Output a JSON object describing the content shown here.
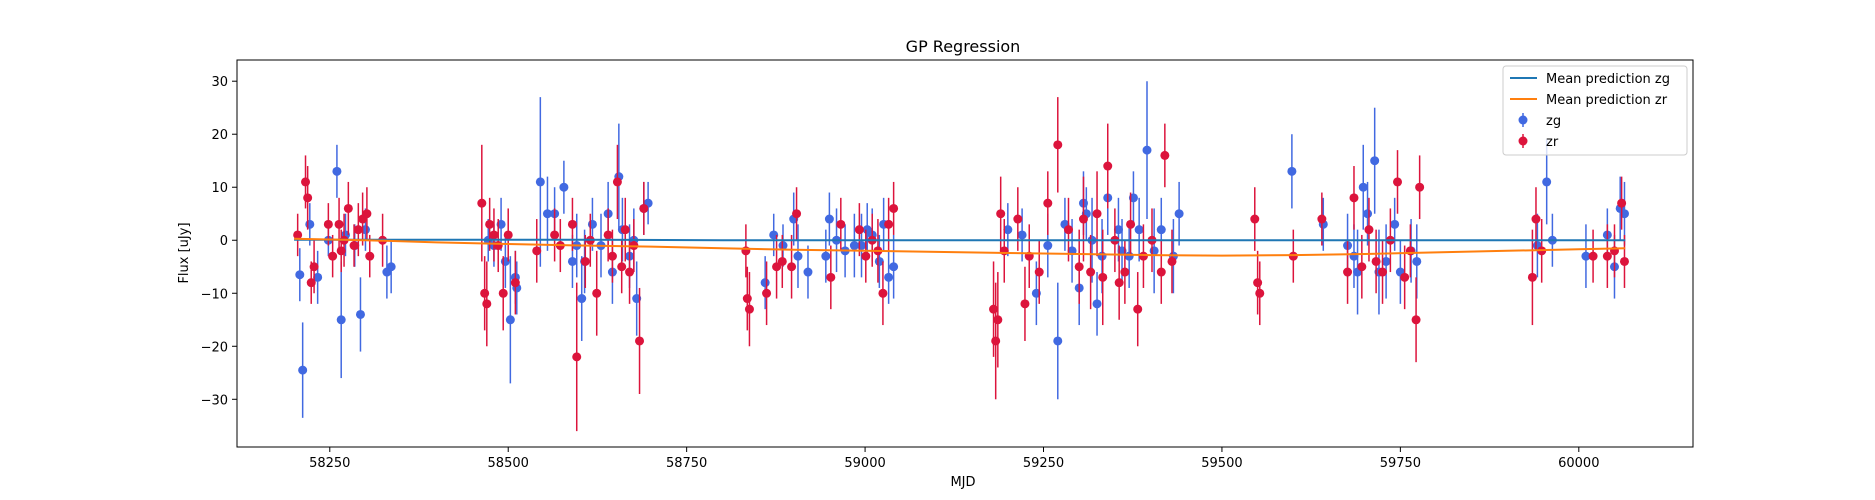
{
  "chart_data": {
    "type": "scatter",
    "title": "GP Regression",
    "xlabel": "MJD",
    "ylabel": "Flux [uJy]",
    "xlim": [
      58120,
      60160
    ],
    "ylim": [
      -39,
      34
    ],
    "xticks": [
      58250,
      58500,
      58750,
      59000,
      59250,
      59500,
      59750,
      60000
    ],
    "yticks": [
      -30,
      -20,
      -10,
      0,
      10,
      20,
      30
    ],
    "grid": false,
    "legend_position": "top-right",
    "colors": {
      "zg_line": "#1f77b4",
      "zr_line": "#ff7f0e",
      "zg": "#4169e1",
      "zr": "#dc143c"
    },
    "lines": [
      {
        "name": "Mean prediction zg",
        "color": "#1f77b4",
        "x": [
          58200,
          58400,
          58600,
          58800,
          59000,
          59200,
          59400,
          59600,
          59800,
          60000,
          60065
        ],
        "y": [
          0.1,
          0.1,
          0.1,
          0.0,
          0.0,
          0.0,
          0.0,
          0.0,
          0.0,
          0.0,
          0.0
        ]
      },
      {
        "name": "Mean prediction zr",
        "color": "#ff7f0e",
        "x": [
          58200,
          58300,
          58400,
          58500,
          58600,
          58700,
          58800,
          58900,
          59000,
          59100,
          59200,
          59300,
          59400,
          59500,
          59600,
          59700,
          59800,
          59900,
          60000,
          60065
        ],
        "y": [
          0.3,
          0.0,
          -0.4,
          -0.7,
          -1.0,
          -1.2,
          -1.5,
          -1.8,
          -2.0,
          -2.2,
          -2.4,
          -2.6,
          -2.8,
          -2.9,
          -2.8,
          -2.6,
          -2.3,
          -2.0,
          -1.7,
          -1.5
        ]
      }
    ],
    "series": [
      {
        "name": "zg",
        "color": "#4169e1",
        "points": [
          [
            58208,
            -6.5,
            5
          ],
          [
            58212,
            -24.5,
            9
          ],
          [
            58222,
            3,
            4
          ],
          [
            58233,
            -7,
            5
          ],
          [
            58248,
            0,
            3
          ],
          [
            58260,
            13,
            5
          ],
          [
            58266,
            -15,
            11
          ],
          [
            58272,
            1,
            4
          ],
          [
            58285,
            -1,
            4
          ],
          [
            58293,
            -14,
            7
          ],
          [
            58300,
            2,
            4
          ],
          [
            58330,
            -6,
            5
          ],
          [
            58336,
            -5,
            5
          ],
          [
            58472,
            0,
            4
          ],
          [
            58480,
            -1,
            4
          ],
          [
            58490,
            3,
            5
          ],
          [
            58496,
            -4,
            5
          ],
          [
            58503,
            -15,
            12
          ],
          [
            58510,
            -7,
            5
          ],
          [
            58512,
            -9,
            5
          ],
          [
            58545,
            11,
            16
          ],
          [
            58555,
            5,
            7
          ],
          [
            58565,
            5,
            5
          ],
          [
            58578,
            10,
            5
          ],
          [
            58590,
            -4,
            5
          ],
          [
            58596,
            -1,
            6
          ],
          [
            58603,
            -11,
            8
          ],
          [
            58607,
            -4,
            6
          ],
          [
            58618,
            3,
            5
          ],
          [
            58630,
            -1,
            6
          ],
          [
            58640,
            5,
            6
          ],
          [
            58646,
            -6,
            6
          ],
          [
            58655,
            12,
            10
          ],
          [
            58660,
            2,
            6
          ],
          [
            58670,
            -3,
            6
          ],
          [
            58676,
            0,
            6
          ],
          [
            58680,
            -11,
            7
          ],
          [
            58690,
            6,
            5
          ],
          [
            58696,
            7,
            4
          ],
          [
            58860,
            -8,
            5
          ],
          [
            58872,
            1,
            4
          ],
          [
            58885,
            -1,
            4
          ],
          [
            58900,
            4,
            5
          ],
          [
            58906,
            -3,
            6
          ],
          [
            58920,
            -6,
            5
          ],
          [
            58945,
            -3,
            5
          ],
          [
            58950,
            4,
            5
          ],
          [
            58960,
            0,
            6
          ],
          [
            58972,
            -2,
            5
          ],
          [
            58985,
            -1,
            6
          ],
          [
            58995,
            -1,
            6
          ],
          [
            59003,
            2,
            5
          ],
          [
            59010,
            1,
            5
          ],
          [
            59020,
            -4,
            5
          ],
          [
            59026,
            3,
            5
          ],
          [
            59033,
            -7,
            5
          ],
          [
            59040,
            -5,
            6
          ],
          [
            59200,
            2,
            5
          ],
          [
            59220,
            1,
            5
          ],
          [
            59240,
            -10,
            6
          ],
          [
            59256,
            -1,
            6
          ],
          [
            59270,
            -19,
            11
          ],
          [
            59280,
            3,
            5
          ],
          [
            59290,
            -2,
            6
          ],
          [
            59300,
            -9,
            7
          ],
          [
            59306,
            7,
            6
          ],
          [
            59310,
            5,
            5
          ],
          [
            59318,
            0,
            8
          ],
          [
            59325,
            -12,
            6
          ],
          [
            59332,
            -3,
            7
          ],
          [
            59340,
            8,
            7
          ],
          [
            59355,
            2,
            6
          ],
          [
            59360,
            -2,
            6
          ],
          [
            59370,
            -3,
            6
          ],
          [
            59376,
            8,
            5
          ],
          [
            59384,
            2,
            6
          ],
          [
            59395,
            17,
            13
          ],
          [
            59405,
            -2,
            8
          ],
          [
            59415,
            2,
            6
          ],
          [
            59432,
            -3,
            7
          ],
          [
            59440,
            5,
            6
          ],
          [
            59598,
            13,
            7
          ],
          [
            59642,
            3,
            5
          ],
          [
            59676,
            -1,
            6
          ],
          [
            59685,
            -3,
            6
          ],
          [
            59690,
            -6,
            8
          ],
          [
            59698,
            10,
            8
          ],
          [
            59704,
            5,
            6
          ],
          [
            59714,
            15,
            10
          ],
          [
            59720,
            -6,
            8
          ],
          [
            59730,
            -4,
            7
          ],
          [
            59742,
            3,
            5
          ],
          [
            59750,
            -6,
            6
          ],
          [
            59765,
            -2,
            6
          ],
          [
            59773,
            -4,
            7
          ],
          [
            59942,
            -1,
            6
          ],
          [
            59955,
            11,
            8
          ],
          [
            59963,
            0,
            5
          ],
          [
            60010,
            -3,
            6
          ],
          [
            60040,
            1,
            5
          ],
          [
            60050,
            -5,
            6
          ],
          [
            60058,
            6,
            6
          ],
          [
            60064,
            5,
            6
          ]
        ]
      },
      {
        "name": "zr",
        "color": "#dc143c",
        "points": [
          [
            58205,
            1,
            4
          ],
          [
            58216,
            11,
            5
          ],
          [
            58219,
            8,
            6
          ],
          [
            58224,
            -8,
            4
          ],
          [
            58228,
            -5,
            5
          ],
          [
            58248,
            3,
            4
          ],
          [
            58254,
            -3,
            4
          ],
          [
            58263,
            3,
            5
          ],
          [
            58266,
            -2,
            4
          ],
          [
            58270,
            0,
            5
          ],
          [
            58276,
            6,
            5
          ],
          [
            58284,
            -1,
            4
          ],
          [
            58290,
            2,
            5
          ],
          [
            58296,
            4,
            5
          ],
          [
            58302,
            5,
            5
          ],
          [
            58306,
            -3,
            4
          ],
          [
            58324,
            0,
            5
          ],
          [
            58463,
            7,
            11
          ],
          [
            58467,
            -10,
            7
          ],
          [
            58470,
            -12,
            8
          ],
          [
            58474,
            3,
            5
          ],
          [
            58480,
            1,
            5
          ],
          [
            58486,
            -1,
            5
          ],
          [
            58493,
            -10,
            7
          ],
          [
            58500,
            1,
            5
          ],
          [
            58510,
            -8,
            6
          ],
          [
            58540,
            -2,
            6
          ],
          [
            58565,
            1,
            5
          ],
          [
            58573,
            -1,
            5
          ],
          [
            58590,
            3,
            5
          ],
          [
            58596,
            -22,
            14
          ],
          [
            58608,
            -4,
            5
          ],
          [
            58615,
            0,
            5
          ],
          [
            58624,
            -10,
            8
          ],
          [
            58640,
            1,
            5
          ],
          [
            58646,
            -3,
            5
          ],
          [
            58653,
            11,
            7
          ],
          [
            58659,
            -5,
            5
          ],
          [
            58664,
            2,
            6
          ],
          [
            58670,
            -6,
            6
          ],
          [
            58676,
            -1,
            5
          ],
          [
            58684,
            -19,
            10
          ],
          [
            58690,
            6,
            5
          ],
          [
            58833,
            -2,
            5
          ],
          [
            58835,
            -11,
            6
          ],
          [
            58838,
            -13,
            7
          ],
          [
            58862,
            -10,
            6
          ],
          [
            58876,
            -5,
            6
          ],
          [
            58884,
            -4,
            5
          ],
          [
            58897,
            -5,
            6
          ],
          [
            58904,
            5,
            5
          ],
          [
            58952,
            -7,
            6
          ],
          [
            58966,
            3,
            5
          ],
          [
            58992,
            2,
            5
          ],
          [
            59001,
            -3,
            5
          ],
          [
            59010,
            0,
            5
          ],
          [
            59018,
            -2,
            6
          ],
          [
            59025,
            -10,
            6
          ],
          [
            59033,
            3,
            5
          ],
          [
            59040,
            6,
            5
          ],
          [
            59180,
            -13,
            9
          ],
          [
            59183,
            -19,
            11
          ],
          [
            59186,
            -15,
            9
          ],
          [
            59190,
            5,
            7
          ],
          [
            59195,
            -2,
            6
          ],
          [
            59214,
            4,
            6
          ],
          [
            59224,
            -12,
            7
          ],
          [
            59230,
            -3,
            6
          ],
          [
            59244,
            -6,
            6
          ],
          [
            59256,
            7,
            6
          ],
          [
            59270,
            18,
            9
          ],
          [
            59285,
            2,
            6
          ],
          [
            59300,
            -5,
            7
          ],
          [
            59306,
            4,
            8
          ],
          [
            59316,
            -6,
            7
          ],
          [
            59325,
            5,
            8
          ],
          [
            59333,
            -7,
            9
          ],
          [
            59340,
            14,
            8
          ],
          [
            59350,
            0,
            6
          ],
          [
            59356,
            -8,
            7
          ],
          [
            59364,
            -6,
            6
          ],
          [
            59372,
            3,
            6
          ],
          [
            59382,
            -13,
            7
          ],
          [
            59390,
            -3,
            6
          ],
          [
            59402,
            0,
            6
          ],
          [
            59415,
            -6,
            6
          ],
          [
            59420,
            16,
            6
          ],
          [
            59430,
            -4,
            6
          ],
          [
            59546,
            4,
            6
          ],
          [
            59550,
            -8,
            6
          ],
          [
            59553,
            -10,
            6
          ],
          [
            59600,
            -3,
            5
          ],
          [
            59640,
            4,
            5
          ],
          [
            59676,
            -6,
            6
          ],
          [
            59685,
            8,
            6
          ],
          [
            59696,
            -5,
            6
          ],
          [
            59706,
            2,
            6
          ],
          [
            59716,
            -4,
            6
          ],
          [
            59725,
            -6,
            6
          ],
          [
            59736,
            0,
            6
          ],
          [
            59746,
            11,
            6
          ],
          [
            59756,
            -7,
            6
          ],
          [
            59764,
            -2,
            5
          ],
          [
            59772,
            -15,
            8
          ],
          [
            59777,
            10,
            6
          ],
          [
            59935,
            -7,
            9
          ],
          [
            59940,
            4,
            6
          ],
          [
            59948,
            -2,
            6
          ],
          [
            60020,
            -3,
            5
          ],
          [
            60040,
            -3,
            6
          ],
          [
            60050,
            -2,
            5
          ],
          [
            60060,
            7,
            5
          ],
          [
            60064,
            -4,
            5
          ]
        ]
      }
    ]
  }
}
